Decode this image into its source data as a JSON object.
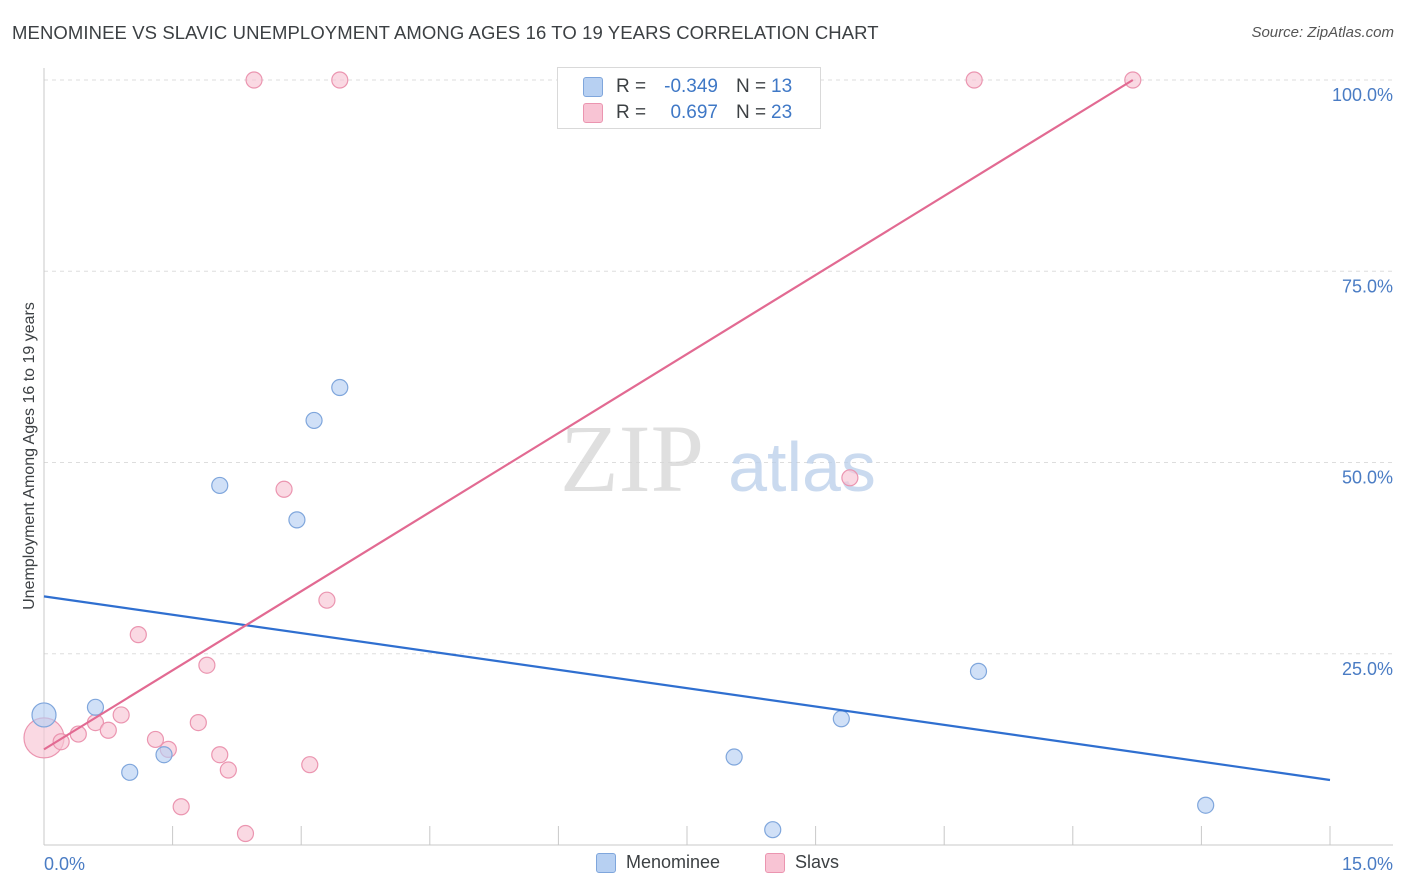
{
  "title": "MENOMINEE VS SLAVIC UNEMPLOYMENT AMONG AGES 16 TO 19 YEARS CORRELATION CHART",
  "source": "Source: ZipAtlas.com",
  "watermark": {
    "zip": "ZIP",
    "atlas": "atlas"
  },
  "colors": {
    "menominee_fill": "#b7d0f2",
    "menominee_stroke": "#7fa6dc",
    "menominee_line": "#2f6fd0",
    "slavs_fill": "#f8c4d4",
    "slavs_stroke": "#eb95b0",
    "slavs_line": "#e26a92",
    "tick_label": "#4a7cc4",
    "grid": "#dddddd"
  },
  "stats": [
    {
      "r_label": "R =",
      "r_value": "-0.349",
      "n_label": "N =",
      "n_value": "13",
      "series": "Menominee"
    },
    {
      "r_label": "R =",
      "r_value": "0.697",
      "n_label": "N =",
      "n_value": "23",
      "series": "Slavs"
    }
  ],
  "chart_data": {
    "type": "scatter",
    "title": "MENOMINEE VS SLAVIC UNEMPLOYMENT AMONG AGES 16 TO 19 YEARS CORRELATION CHART",
    "xlabel": "",
    "ylabel": "Unemployment Among Ages 16 to 19 years",
    "xlim": [
      0,
      15
    ],
    "ylim": [
      0,
      100
    ],
    "x_tick_labels": [
      "0.0%",
      "15.0%"
    ],
    "y_ticks": [
      25,
      50,
      75,
      100
    ],
    "y_tick_labels": [
      "25.0%",
      "50.0%",
      "75.0%",
      "100.0%"
    ],
    "grid": true,
    "legend": "bottom-center",
    "series": [
      {
        "name": "Menominee",
        "points": [
          {
            "x": 0.0,
            "y": 17.0
          },
          {
            "x": 0.6,
            "y": 18.0
          },
          {
            "x": 1.0,
            "y": 9.5
          },
          {
            "x": 1.4,
            "y": 11.8
          },
          {
            "x": 2.05,
            "y": 47.0
          },
          {
            "x": 2.95,
            "y": 42.5
          },
          {
            "x": 3.15,
            "y": 55.5
          },
          {
            "x": 3.45,
            "y": 59.8
          },
          {
            "x": 8.05,
            "y": 11.5
          },
          {
            "x": 8.5,
            "y": 2.0
          },
          {
            "x": 9.3,
            "y": 16.5
          },
          {
            "x": 10.9,
            "y": 22.7
          },
          {
            "x": 13.55,
            "y": 5.2
          }
        ],
        "trend": {
          "x1": 0,
          "y1": 32.5,
          "x2": 15,
          "y2": 8.5
        }
      },
      {
        "name": "Slavs",
        "points": [
          {
            "x": 0.0,
            "y": 14.0
          },
          {
            "x": 0.2,
            "y": 13.5
          },
          {
            "x": 0.4,
            "y": 14.5
          },
          {
            "x": 0.6,
            "y": 16.0
          },
          {
            "x": 0.75,
            "y": 15.0
          },
          {
            "x": 0.9,
            "y": 17.0
          },
          {
            "x": 1.1,
            "y": 27.5
          },
          {
            "x": 1.3,
            "y": 13.8
          },
          {
            "x": 1.45,
            "y": 12.5
          },
          {
            "x": 1.6,
            "y": 5.0
          },
          {
            "x": 1.8,
            "y": 16.0
          },
          {
            "x": 1.9,
            "y": 23.5
          },
          {
            "x": 2.05,
            "y": 11.8
          },
          {
            "x": 2.15,
            "y": 9.8
          },
          {
            "x": 2.35,
            "y": 1.5
          },
          {
            "x": 2.45,
            "y": 100.0
          },
          {
            "x": 2.8,
            "y": 46.5
          },
          {
            "x": 3.1,
            "y": 10.5
          },
          {
            "x": 3.3,
            "y": 32.0
          },
          {
            "x": 3.45,
            "y": 100.0
          },
          {
            "x": 9.4,
            "y": 48.0
          },
          {
            "x": 10.85,
            "y": 100.0
          },
          {
            "x": 12.7,
            "y": 100.0
          }
        ],
        "trend": {
          "x1": 0,
          "y1": 12.5,
          "x2": 12.7,
          "y2": 100.0
        }
      }
    ]
  }
}
